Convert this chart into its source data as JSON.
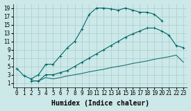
{
  "xlabel": "Humidex (Indice chaleur)",
  "background_color": "#cce8e8",
  "line_color": "#006666",
  "xlim": [
    -0.5,
    23.5
  ],
  "ylim": [
    0.0,
    20.0
  ],
  "xticks": [
    0,
    1,
    2,
    3,
    4,
    5,
    6,
    7,
    8,
    9,
    10,
    11,
    12,
    13,
    14,
    15,
    16,
    17,
    18,
    19,
    20,
    21,
    22,
    23
  ],
  "yticks": [
    1,
    3,
    5,
    7,
    9,
    11,
    13,
    15,
    17,
    19
  ],
  "curve1_x": [
    0,
    1,
    2,
    3,
    4,
    5,
    6,
    7,
    8,
    9,
    10,
    11,
    12,
    13,
    14,
    15,
    16,
    17,
    18,
    19,
    20
  ],
  "curve1_y": [
    4.5,
    2.7,
    2.0,
    3.0,
    5.5,
    5.5,
    7.5,
    9.5,
    11.0,
    14.0,
    17.5,
    19.0,
    19.0,
    18.8,
    18.5,
    19.0,
    18.5,
    18.0,
    18.0,
    17.5,
    16.0
  ],
  "curve2_x": [
    2,
    3,
    4,
    5,
    6,
    7,
    8,
    9,
    10,
    11,
    12,
    13,
    14,
    15,
    16,
    17,
    18,
    19,
    20,
    21,
    22,
    23
  ],
  "curve2_y": [
    1.5,
    1.5,
    3.0,
    3.0,
    3.5,
    4.0,
    5.0,
    6.0,
    7.0,
    8.0,
    9.0,
    10.0,
    11.0,
    12.0,
    12.8,
    13.5,
    14.2,
    14.2,
    13.5,
    12.5,
    10.0,
    9.5
  ],
  "curve3_x": [
    2,
    3,
    4,
    5,
    6,
    7,
    8,
    9,
    10,
    11,
    12,
    13,
    14,
    15,
    16,
    17,
    18,
    19,
    20,
    21,
    22,
    23
  ],
  "curve3_y": [
    1.5,
    1.5,
    2.3,
    2.0,
    2.3,
    2.7,
    3.0,
    3.3,
    3.7,
    4.0,
    4.3,
    4.7,
    5.0,
    5.3,
    5.7,
    6.0,
    6.3,
    6.7,
    7.0,
    7.3,
    7.7,
    6.0
  ],
  "grid_color": "#aacccc",
  "tick_fontsize": 5.5,
  "label_fontsize": 7.0
}
